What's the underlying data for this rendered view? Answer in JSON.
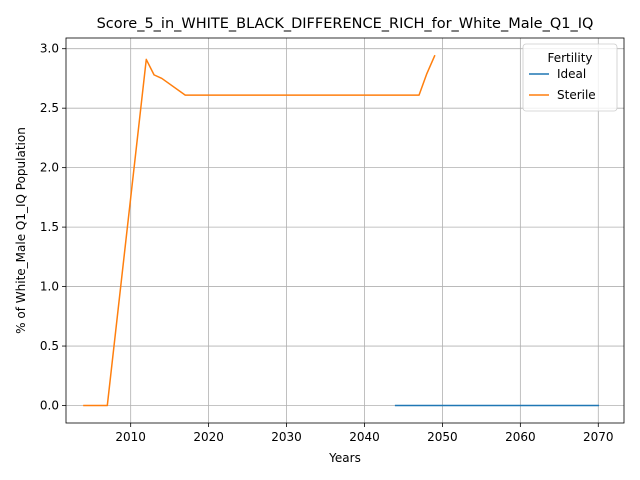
{
  "chart_data": {
    "type": "line",
    "title": "Score_5_in_WHITE_BLACK_DIFFERENCE_RICH_for_White_Male_Q1_IQ",
    "xlabel": "Years",
    "ylabel": "% of White_Male Q1_IQ Population",
    "xlim": [
      2001.7,
      2073.3
    ],
    "ylim": [
      -0.147,
      3.09
    ],
    "xticks": [
      2010,
      2020,
      2030,
      2040,
      2050,
      2060,
      2070
    ],
    "yticks": [
      0.0,
      0.5,
      1.0,
      1.5,
      2.0,
      2.5,
      3.0
    ],
    "xtick_labels": [
      "2010",
      "2020",
      "2030",
      "2040",
      "2050",
      "2060",
      "2070"
    ],
    "ytick_labels": [
      "0.0",
      "0.5",
      "1.0",
      "1.5",
      "2.0",
      "2.5",
      "3.0"
    ],
    "grid": true,
    "legend": {
      "title": "Fertility",
      "placement": "top-right"
    },
    "series": [
      {
        "name": "Ideal",
        "color": "#1f77b4",
        "x": [
          2044,
          2050,
          2060,
          2070
        ],
        "y": [
          0.0,
          0.0,
          0.0,
          0.0
        ]
      },
      {
        "name": "Sterile",
        "color": "#ff7f0e",
        "x": [
          2004,
          2005,
          2006,
          2007,
          2012,
          2013,
          2014,
          2017,
          2020,
          2030,
          2040,
          2047,
          2048,
          2049
        ],
        "y": [
          0.0,
          0.0,
          0.0,
          0.0,
          2.91,
          2.78,
          2.75,
          2.61,
          2.61,
          2.61,
          2.61,
          2.61,
          2.79,
          2.94
        ]
      }
    ]
  }
}
